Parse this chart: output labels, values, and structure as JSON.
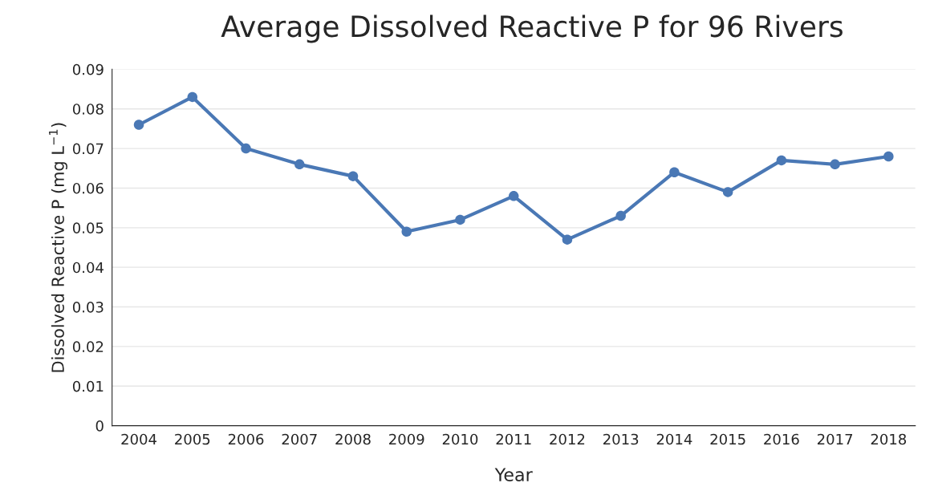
{
  "chart_data": {
    "type": "line",
    "title": "Average Dissolved Reactive P for 96 Rivers",
    "xlabel": "Year",
    "ylabel": "Dissolved Reactive P (mg L$^{−1}$)",
    "categories": [
      "2004",
      "2005",
      "2006",
      "2007",
      "2008",
      "2009",
      "2010",
      "2011",
      "2012",
      "2013",
      "2014",
      "2015",
      "2016",
      "2017",
      "2018"
    ],
    "series": [
      {
        "color": "#4a78b5",
        "values": [
          0.076,
          0.083,
          0.07,
          0.066,
          0.063,
          0.049,
          0.052,
          0.058,
          0.047,
          0.053,
          0.064,
          0.059,
          0.067,
          0.066,
          0.068
        ]
      }
    ],
    "ylim": [
      0,
      0.09
    ],
    "yticks": [
      0,
      0.01,
      0.02,
      0.03,
      0.04,
      0.05,
      0.06,
      0.07,
      0.08,
      0.09
    ],
    "grid": "y",
    "marker": "circle",
    "line_style": "solid"
  }
}
